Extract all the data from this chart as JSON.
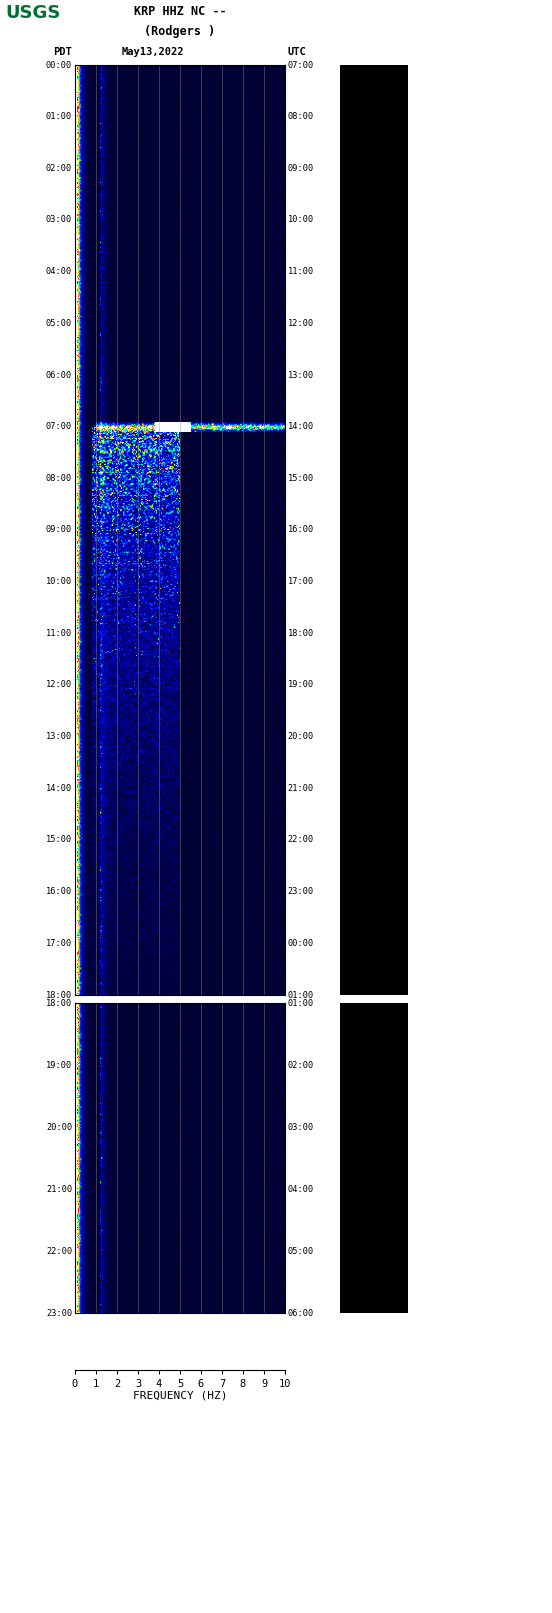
{
  "title_line1": "KRP HHZ NC --",
  "title_line2": "(Rodgers )",
  "label_left": "PDT",
  "label_date": "May13,2022",
  "label_right": "UTC",
  "xlabel": "FREQUENCY (HZ)",
  "freq_min": 0,
  "freq_max": 10,
  "panel1_pdt_ticks": [
    "00:00",
    "01:00",
    "02:00",
    "03:00",
    "04:00",
    "05:00",
    "06:00",
    "07:00",
    "08:00",
    "09:00",
    "10:00",
    "11:00",
    "12:00",
    "13:00",
    "14:00",
    "15:00",
    "16:00",
    "17:00",
    "18:00"
  ],
  "panel1_utc_ticks": [
    "07:00",
    "08:00",
    "09:00",
    "10:00",
    "11:00",
    "12:00",
    "13:00",
    "14:00",
    "15:00",
    "16:00",
    "17:00",
    "18:00",
    "19:00",
    "20:00",
    "21:00",
    "22:00",
    "23:00",
    "00:00",
    "01:00"
  ],
  "panel2_pdt_ticks": [
    "18:00",
    "19:00",
    "20:00",
    "21:00",
    "22:00",
    "23:00"
  ],
  "panel2_utc_ticks": [
    "01:00",
    "02:00",
    "03:00",
    "04:00",
    "05:00",
    "06:00"
  ],
  "background_color": "#ffffff",
  "spectrogram_bg": "#00008B",
  "grid_color": "#808080",
  "seismogram_bg": "#000000",
  "usgs_green": "#007030"
}
